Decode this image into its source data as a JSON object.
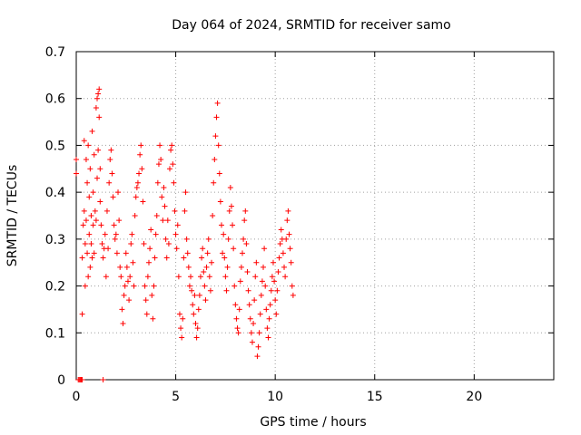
{
  "chart_data": {
    "type": "scatter",
    "title": "Day 064 of 2024, SRMTID for receiver samo",
    "xlabel": "GPS time / hours",
    "ylabel": "SRMTID / TECUs",
    "xlim": [
      0,
      24
    ],
    "ylim": [
      0,
      0.7
    ],
    "x_ticks": [
      0,
      5,
      10,
      15,
      20
    ],
    "y_ticks": [
      0,
      0.1,
      0.2,
      0.3,
      0.4,
      0.5,
      0.6,
      0.7
    ],
    "grid": true,
    "marker": "+",
    "series": [
      {
        "name": "SRMTID",
        "color": "#ff0000",
        "points": [
          [
            0.0,
            0.44
          ],
          [
            0.0,
            0.47
          ],
          [
            0.1,
            0.0
          ],
          [
            0.15,
            0.0
          ],
          [
            0.2,
            0.0
          ],
          [
            0.25,
            0.0
          ],
          [
            0.3,
            0.0
          ],
          [
            0.3,
            0.14
          ],
          [
            0.3,
            0.26
          ],
          [
            0.35,
            0.33
          ],
          [
            0.4,
            0.51
          ],
          [
            0.4,
            0.36
          ],
          [
            0.45,
            0.2
          ],
          [
            0.45,
            0.29
          ],
          [
            0.5,
            0.47
          ],
          [
            0.5,
            0.34
          ],
          [
            0.55,
            0.42
          ],
          [
            0.55,
            0.27
          ],
          [
            0.6,
            0.22
          ],
          [
            0.6,
            0.5
          ],
          [
            0.65,
            0.31
          ],
          [
            0.65,
            0.39
          ],
          [
            0.7,
            0.24
          ],
          [
            0.7,
            0.45
          ],
          [
            0.75,
            0.35
          ],
          [
            0.75,
            0.29
          ],
          [
            0.8,
            0.26
          ],
          [
            0.8,
            0.53
          ],
          [
            0.85,
            0.33
          ],
          [
            0.85,
            0.4
          ],
          [
            0.9,
            0.27
          ],
          [
            0.9,
            0.48
          ],
          [
            0.95,
            0.36
          ],
          [
            1.0,
            0.58
          ],
          [
            1.0,
            0.34
          ],
          [
            1.05,
            0.6
          ],
          [
            1.05,
            0.43
          ],
          [
            1.1,
            0.61
          ],
          [
            1.1,
            0.49
          ],
          [
            1.15,
            0.62
          ],
          [
            1.15,
            0.56
          ],
          [
            1.2,
            0.45
          ],
          [
            1.2,
            0.38
          ],
          [
            1.25,
            0.33
          ],
          [
            1.3,
            0.29
          ],
          [
            1.35,
            0.0
          ],
          [
            1.35,
            0.26
          ],
          [
            1.4,
            0.28
          ],
          [
            1.45,
            0.31
          ],
          [
            1.5,
            0.22
          ],
          [
            1.55,
            0.36
          ],
          [
            1.6,
            0.28
          ],
          [
            1.65,
            0.42
          ],
          [
            1.7,
            0.47
          ],
          [
            1.75,
            0.49
          ],
          [
            1.8,
            0.44
          ],
          [
            1.85,
            0.39
          ],
          [
            1.9,
            0.33
          ],
          [
            1.95,
            0.3
          ],
          [
            2.0,
            0.31
          ],
          [
            2.05,
            0.27
          ],
          [
            2.1,
            0.4
          ],
          [
            2.15,
            0.34
          ],
          [
            2.2,
            0.24
          ],
          [
            2.25,
            0.22
          ],
          [
            2.3,
            0.15
          ],
          [
            2.35,
            0.12
          ],
          [
            2.4,
            0.18
          ],
          [
            2.45,
            0.2
          ],
          [
            2.5,
            0.27
          ],
          [
            2.55,
            0.24
          ],
          [
            2.6,
            0.21
          ],
          [
            2.65,
            0.17
          ],
          [
            2.7,
            0.22
          ],
          [
            2.75,
            0.29
          ],
          [
            2.8,
            0.31
          ],
          [
            2.85,
            0.25
          ],
          [
            2.9,
            0.2
          ],
          [
            2.95,
            0.35
          ],
          [
            3.0,
            0.39
          ],
          [
            3.05,
            0.41
          ],
          [
            3.1,
            0.42
          ],
          [
            3.15,
            0.44
          ],
          [
            3.2,
            0.48
          ],
          [
            3.25,
            0.5
          ],
          [
            3.3,
            0.45
          ],
          [
            3.35,
            0.38
          ],
          [
            3.4,
            0.29
          ],
          [
            3.45,
            0.2
          ],
          [
            3.5,
            0.17
          ],
          [
            3.55,
            0.14
          ],
          [
            3.6,
            0.22
          ],
          [
            3.65,
            0.25
          ],
          [
            3.7,
            0.28
          ],
          [
            3.75,
            0.32
          ],
          [
            3.8,
            0.18
          ],
          [
            3.85,
            0.13
          ],
          [
            3.9,
            0.2
          ],
          [
            3.95,
            0.26
          ],
          [
            4.0,
            0.31
          ],
          [
            4.05,
            0.35
          ],
          [
            4.1,
            0.42
          ],
          [
            4.15,
            0.46
          ],
          [
            4.2,
            0.5
          ],
          [
            4.25,
            0.47
          ],
          [
            4.3,
            0.39
          ],
          [
            4.35,
            0.34
          ],
          [
            4.4,
            0.41
          ],
          [
            4.45,
            0.37
          ],
          [
            4.5,
            0.3
          ],
          [
            4.55,
            0.26
          ],
          [
            4.6,
            0.34
          ],
          [
            4.65,
            0.29
          ],
          [
            4.7,
            0.45
          ],
          [
            4.75,
            0.49
          ],
          [
            4.8,
            0.5
          ],
          [
            4.85,
            0.46
          ],
          [
            4.9,
            0.42
          ],
          [
            4.95,
            0.36
          ],
          [
            5.0,
            0.31
          ],
          [
            5.05,
            0.28
          ],
          [
            5.1,
            0.33
          ],
          [
            5.15,
            0.22
          ],
          [
            5.2,
            0.14
          ],
          [
            5.25,
            0.11
          ],
          [
            5.3,
            0.09
          ],
          [
            5.35,
            0.13
          ],
          [
            5.4,
            0.26
          ],
          [
            5.45,
            0.36
          ],
          [
            5.5,
            0.4
          ],
          [
            5.55,
            0.3
          ],
          [
            5.6,
            0.27
          ],
          [
            5.65,
            0.24
          ],
          [
            5.7,
            0.2
          ],
          [
            5.75,
            0.22
          ],
          [
            5.8,
            0.19
          ],
          [
            5.85,
            0.16
          ],
          [
            5.9,
            0.14
          ],
          [
            5.95,
            0.18
          ],
          [
            6.0,
            0.12
          ],
          [
            6.05,
            0.09
          ],
          [
            6.1,
            0.11
          ],
          [
            6.15,
            0.15
          ],
          [
            6.2,
            0.18
          ],
          [
            6.25,
            0.22
          ],
          [
            6.3,
            0.26
          ],
          [
            6.35,
            0.28
          ],
          [
            6.4,
            0.23
          ],
          [
            6.45,
            0.2
          ],
          [
            6.5,
            0.17
          ],
          [
            6.55,
            0.24
          ],
          [
            6.6,
            0.27
          ],
          [
            6.65,
            0.3
          ],
          [
            6.7,
            0.22
          ],
          [
            6.75,
            0.19
          ],
          [
            6.8,
            0.25
          ],
          [
            6.85,
            0.35
          ],
          [
            6.9,
            0.42
          ],
          [
            6.95,
            0.47
          ],
          [
            7.0,
            0.52
          ],
          [
            7.05,
            0.56
          ],
          [
            7.1,
            0.59
          ],
          [
            7.15,
            0.5
          ],
          [
            7.2,
            0.44
          ],
          [
            7.25,
            0.38
          ],
          [
            7.3,
            0.33
          ],
          [
            7.35,
            0.27
          ],
          [
            7.4,
            0.31
          ],
          [
            7.45,
            0.26
          ],
          [
            7.5,
            0.22
          ],
          [
            7.55,
            0.19
          ],
          [
            7.6,
            0.24
          ],
          [
            7.65,
            0.3
          ],
          [
            7.7,
            0.36
          ],
          [
            7.75,
            0.41
          ],
          [
            7.8,
            0.37
          ],
          [
            7.85,
            0.33
          ],
          [
            7.9,
            0.28
          ],
          [
            7.95,
            0.2
          ],
          [
            8.0,
            0.16
          ],
          [
            8.05,
            0.13
          ],
          [
            8.1,
            0.11
          ],
          [
            8.15,
            0.1
          ],
          [
            8.2,
            0.15
          ],
          [
            8.25,
            0.21
          ],
          [
            8.3,
            0.24
          ],
          [
            8.35,
            0.27
          ],
          [
            8.4,
            0.3
          ],
          [
            8.45,
            0.34
          ],
          [
            8.5,
            0.36
          ],
          [
            8.55,
            0.29
          ],
          [
            8.6,
            0.23
          ],
          [
            8.65,
            0.19
          ],
          [
            8.7,
            0.16
          ],
          [
            8.75,
            0.13
          ],
          [
            8.8,
            0.1
          ],
          [
            8.85,
            0.08
          ],
          [
            8.9,
            0.12
          ],
          [
            8.95,
            0.17
          ],
          [
            9.0,
            0.22
          ],
          [
            9.05,
            0.25
          ],
          [
            9.1,
            0.05
          ],
          [
            9.15,
            0.07
          ],
          [
            9.2,
            0.1
          ],
          [
            9.25,
            0.14
          ],
          [
            9.3,
            0.18
          ],
          [
            9.35,
            0.21
          ],
          [
            9.4,
            0.24
          ],
          [
            9.45,
            0.28
          ],
          [
            9.5,
            0.2
          ],
          [
            9.55,
            0.15
          ],
          [
            9.6,
            0.11
          ],
          [
            9.65,
            0.09
          ],
          [
            9.7,
            0.13
          ],
          [
            9.75,
            0.16
          ],
          [
            9.8,
            0.19
          ],
          [
            9.85,
            0.22
          ],
          [
            9.9,
            0.25
          ],
          [
            9.95,
            0.21
          ],
          [
            10.0,
            0.17
          ],
          [
            10.05,
            0.14
          ],
          [
            10.1,
            0.19
          ],
          [
            10.15,
            0.23
          ],
          [
            10.2,
            0.26
          ],
          [
            10.25,
            0.29
          ],
          [
            10.3,
            0.32
          ],
          [
            10.35,
            0.3
          ],
          [
            10.4,
            0.27
          ],
          [
            10.45,
            0.24
          ],
          [
            10.5,
            0.22
          ],
          [
            10.55,
            0.3
          ],
          [
            10.6,
            0.34
          ],
          [
            10.65,
            0.36
          ],
          [
            10.7,
            0.31
          ],
          [
            10.75,
            0.28
          ],
          [
            10.8,
            0.25
          ],
          [
            10.85,
            0.2
          ],
          [
            10.9,
            0.18
          ]
        ]
      }
    ]
  }
}
